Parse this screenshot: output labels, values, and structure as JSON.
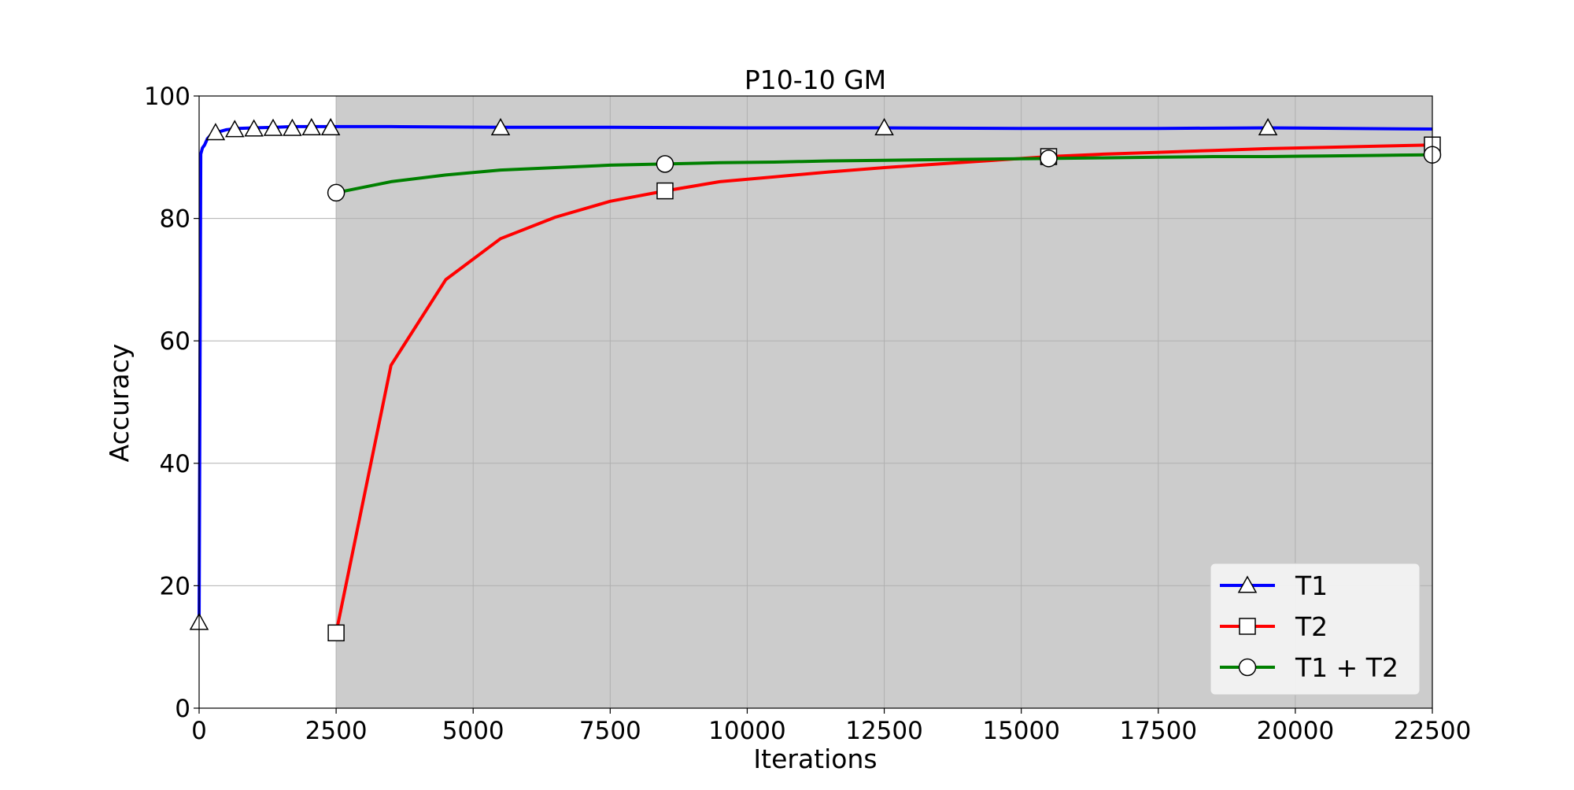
{
  "chart_data": {
    "type": "line",
    "title": "P10-10 GM",
    "xlabel": "Iterations",
    "ylabel": "Accuracy",
    "xlim": [
      0,
      22500
    ],
    "ylim": [
      0,
      100
    ],
    "xticks": [
      0,
      2500,
      5000,
      7500,
      10000,
      12500,
      15000,
      17500,
      20000,
      22500
    ],
    "yticks": [
      0,
      20,
      40,
      60,
      80,
      100
    ],
    "grid": true,
    "shaded_region": {
      "x_start": 2500,
      "x_end": 22500,
      "color": "#cccccc"
    },
    "legend": {
      "placement": "lower right"
    },
    "series": [
      {
        "name": "T1",
        "color": "#0000ff",
        "marker": "triangle",
        "x": [
          0,
          30,
          60,
          100,
          150,
          200,
          300,
          500,
          700,
          1000,
          1400,
          1700,
          2100,
          2400,
          3500,
          5500,
          7500,
          10000,
          12500,
          15000,
          17500,
          19500,
          22500
        ],
        "y": [
          14,
          90.5,
          91.5,
          92,
          93,
          93.5,
          94,
          94.5,
          94.7,
          94.8,
          94.9,
          95,
          95,
          95,
          95,
          94.9,
          94.9,
          94.8,
          94.8,
          94.7,
          94.7,
          94.8,
          94.6
        ],
        "marker_x": [
          0,
          300,
          650,
          1000,
          1350,
          1700,
          2050,
          2400,
          5500,
          12500,
          19500
        ],
        "marker_y": [
          14,
          94,
          94.5,
          94.6,
          94.7,
          94.7,
          94.8,
          94.8,
          94.8,
          94.8,
          94.8
        ]
      },
      {
        "name": "T2",
        "color": "#ff0000",
        "marker": "square",
        "x": [
          2500,
          3500,
          4500,
          5500,
          6500,
          7500,
          8500,
          9500,
          10500,
          11500,
          12500,
          13500,
          14500,
          15500,
          16500,
          17500,
          18500,
          19500,
          20500,
          21500,
          22500
        ],
        "y": [
          12.3,
          56,
          70,
          76.7,
          80.2,
          82.8,
          84.5,
          86,
          86.8,
          87.6,
          88.3,
          88.9,
          89.5,
          90.1,
          90.5,
          90.8,
          91.1,
          91.4,
          91.6,
          91.8,
          92
        ],
        "marker_x": [
          2500,
          8500,
          15500,
          22500
        ],
        "marker_y": [
          12.3,
          84.5,
          90.1,
          92
        ]
      },
      {
        "name": "T1 + T2",
        "color": "#008000",
        "marker": "circle",
        "x": [
          2500,
          3500,
          4500,
          5500,
          6500,
          7500,
          8500,
          9500,
          10500,
          11500,
          12500,
          13500,
          14500,
          15500,
          16500,
          17500,
          18500,
          19500,
          20500,
          21500,
          22500
        ],
        "y": [
          84.2,
          86,
          87.1,
          87.9,
          88.3,
          88.7,
          88.9,
          89.1,
          89.2,
          89.4,
          89.5,
          89.6,
          89.7,
          89.8,
          89.9,
          90,
          90.1,
          90.1,
          90.2,
          90.3,
          90.4
        ],
        "marker_x": [
          2500,
          8500,
          15500,
          22500
        ],
        "marker_y": [
          84.2,
          88.9,
          89.8,
          90.4
        ]
      }
    ]
  }
}
